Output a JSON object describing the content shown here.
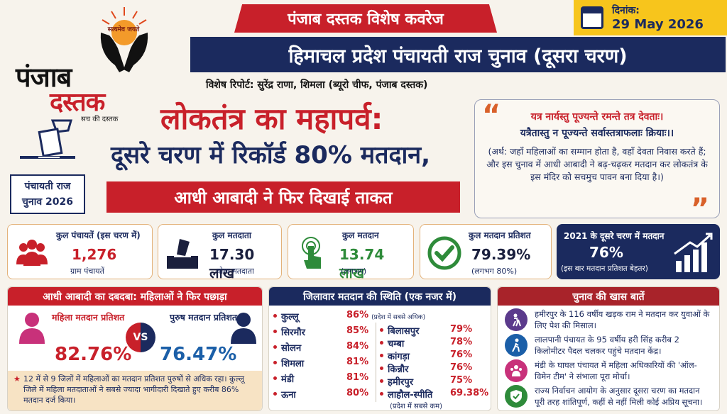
{
  "brand": {
    "emblem_text": "सत्यमेव जयते",
    "name_line1": "पंजाब",
    "name_line2": "दस्तक",
    "tagline": "सच की दस्तक"
  },
  "banner": "पंजाब दस्तक विशेष कवरेज",
  "date": {
    "label": "दिनांक:",
    "value": "29 May 2026"
  },
  "main_title": "हिमाचल प्रदेश पंचायती राज चुनाव (दूसरा चरण)",
  "reporter": "विशेष रिपोर्ट: सुरेंद्र राणा, शिमला (ब्यूरो चीफ, पंजाब दस्तक)",
  "ballot_label": {
    "line1": "पंचायती राज",
    "line2": "चुनाव 2026"
  },
  "headline": {
    "line1": "लोकतंत्र का महापर्व:",
    "line2": "दूसरे चरण में रिकॉर्ड 80% मतदान,",
    "line3": "आधी आबादी ने फिर दिखाई ताकत"
  },
  "quote": {
    "sanskrit1": "यत्र नार्यस्तु पूज्यन्ते रमन्ते तत्र देवताः।",
    "sanskrit2": "यत्रैतास्तु न पूज्यन्ते सर्वास्तत्राफलाः क्रियाः।।",
    "meaning": "(अर्थ: जहाँ महिलाओं का सम्मान होता है, वहाँ देवता निवास करते हैं; और इस चुनाव में आधी आबादी ने बढ़-चढ़कर मतदान कर लोकतंत्र के इस मंदिर को सचमुच पावन बना दिया है।)"
  },
  "stats": [
    {
      "label": "कुल पंचायतें (इस चरण में)",
      "value": "1,276",
      "sub": "ग्राम पंचायतें",
      "icon": "people-icon",
      "color": "#c8202a"
    },
    {
      "label": "कुल मतदाता",
      "value": "17.30 लाख",
      "sub": "योग्य मतदाता",
      "icon": "ballot-box-icon",
      "color": "#1a1f3d"
    },
    {
      "label": "कुल मतदान",
      "value": "13.74 लाख",
      "sub": "(लगभग)",
      "icon": "finger-press-icon",
      "color": "#2e8b3a"
    },
    {
      "label": "कुल मतदान प्रतिशत",
      "value": "79.39%",
      "sub": "(लगभग 80%)",
      "icon": "check-circle-icon",
      "color": "#1a1f3d"
    }
  ],
  "stat_2021": {
    "label": "2021 के दूसरे चरण में मतदान",
    "value": "76%",
    "sub": "(इस बार मतदान प्रतिशत बेहतर)"
  },
  "women_panel": {
    "title": "आधी आबादी का दबदबा: महिलाओं ने फिर पछाड़ा",
    "female_label": "महिला मतदान प्रतिशत",
    "female_value": "82.76%",
    "vs": "VS",
    "male_label": "पुरुष मतदान प्रतिशत",
    "male_value": "76.47%",
    "note": "12 में से 9 जिलों में महिलाओं का मतदान प्रतिशत पुरुषों से अधिक रहा। कुल्लू जिले में महिला मतदाताओं ने सबसे ज्यादा भागीदारी दिखाते हुए करीब 86% मतदान दर्ज किया।"
  },
  "district_panel": {
    "title": "जिलावार मतदान की स्थिति (एक नजर में)",
    "left": [
      {
        "name": "कुल्लू",
        "pct": "86%",
        "note": "(प्रदेश में सबसे अधिक)"
      },
      {
        "name": "सिरमौर",
        "pct": "85%",
        "note": ""
      },
      {
        "name": "सोलन",
        "pct": "84%",
        "note": ""
      },
      {
        "name": "शिमला",
        "pct": "81%",
        "note": ""
      },
      {
        "name": "मंडी",
        "pct": "81%",
        "note": ""
      },
      {
        "name": "ऊना",
        "pct": "80%",
        "note": ""
      }
    ],
    "right": [
      {
        "name": "बिलासपुर",
        "pct": "79%"
      },
      {
        "name": "चम्बा",
        "pct": "78%"
      },
      {
        "name": "कांगड़ा",
        "pct": "76%"
      },
      {
        "name": "किन्नौर",
        "pct": "76%"
      },
      {
        "name": "हमीरपुर",
        "pct": "75%"
      },
      {
        "name": "लाहौल-स्पीति",
        "pct": "69.38%"
      }
    ],
    "lowest_note": "(प्रदेश में सबसे कम)"
  },
  "highlights_panel": {
    "title": "चुनाव की खास बातें",
    "items": [
      {
        "text": "हमीरपुर के 116 वर्षीय खड़क राम ने मतदान कर युवाओं के लिए पेश की मिसाल।",
        "icon": "elderly-icon",
        "color": "#5b3a8c"
      },
      {
        "text": "लालपानी पंचायत के 95 वर्षीय हरी सिंह करीब 2 किलोमीटर पैदल चलकर पहुंचे मतदान केंद्र।",
        "icon": "walking-icon",
        "color": "#1b5fa8"
      },
      {
        "text": "मंडी के घाघल पंचायत में महिला अधिकारियों की 'ऑल-विमेन टीम' ने संभाला पूरा मोर्चा।",
        "icon": "women-team-icon",
        "color": "#c8317a"
      },
      {
        "text": "राज्य निर्वाचन आयोग के अनुसार दूसरा चरण का मतदान पूरी तरह शांतिपूर्ण, कहीं से नहीं मिली कोई अप्रिय सूचना।",
        "icon": "shield-check-icon",
        "color": "#2e8b3a"
      }
    ]
  }
}
